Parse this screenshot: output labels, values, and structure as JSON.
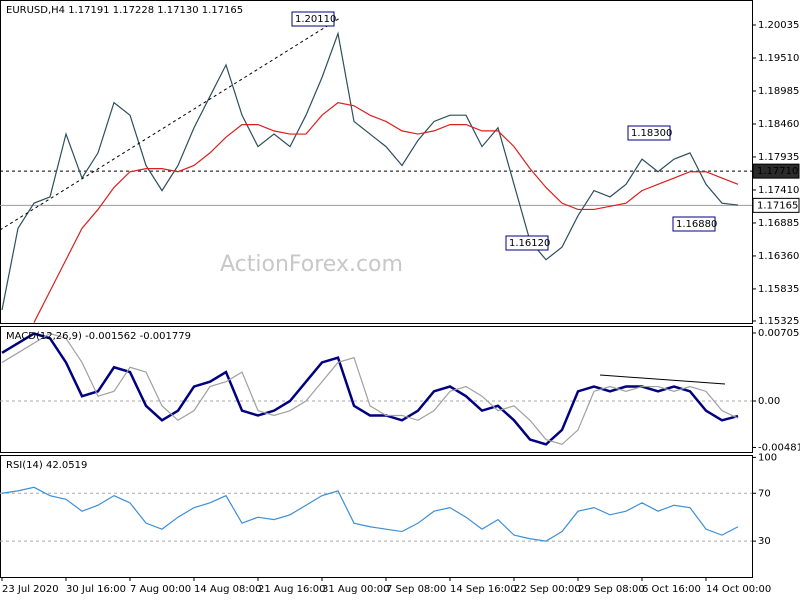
{
  "chart_data": [
    {
      "type": "line",
      "title": "EURUSD,H4  1.17191 1.17228 1.17130 1.17165",
      "watermark": "ActionForex.com",
      "categories": [
        "23 Jul 2020",
        null,
        null,
        null,
        "30 Jul 16:00",
        null,
        null,
        null,
        "7 Aug 00:00",
        null,
        null,
        null,
        "14 Aug 08:00",
        null,
        null,
        null,
        "21 Aug 16:00",
        null,
        null,
        null,
        "31 Aug 00:00",
        null,
        null,
        null,
        "7 Sep 08:00",
        null,
        null,
        null,
        "14 Sep 16:00",
        null,
        null,
        null,
        "22 Sep 00:00",
        null,
        null,
        null,
        "29 Sep 08:00",
        null,
        null,
        null,
        "6 Oct 16:00",
        null,
        null,
        null,
        "14 Oct 00:00",
        null,
        null
      ],
      "series": [
        {
          "color": "#2b4f5c",
          "values": [
            1.155,
            1.168,
            1.172,
            1.173,
            1.183,
            1.176,
            1.18,
            1.188,
            1.186,
            1.178,
            1.174,
            1.178,
            1.184,
            1.189,
            1.194,
            1.186,
            1.181,
            1.183,
            1.181,
            1.186,
            1.192,
            1.199,
            1.185,
            1.183,
            1.181,
            1.178,
            1.182,
            1.185,
            1.186,
            1.186,
            1.181,
            1.184,
            1.175,
            1.166,
            1.163,
            1.165,
            1.17,
            1.174,
            1.173,
            1.175,
            1.179,
            1.177,
            1.179,
            1.18,
            1.175,
            1.172,
            1.1717
          ]
        },
        {
          "color": "#d9201f",
          "values": [
            null,
            null,
            1.153,
            1.158,
            1.163,
            1.168,
            1.171,
            1.1745,
            1.177,
            1.1775,
            1.1775,
            1.177,
            1.178,
            1.18,
            1.1825,
            1.1845,
            1.1845,
            1.1835,
            1.183,
            1.183,
            1.186,
            1.188,
            1.1875,
            1.186,
            1.185,
            1.1835,
            1.183,
            1.1835,
            1.1845,
            1.1845,
            1.1835,
            1.1835,
            1.181,
            1.1775,
            1.1745,
            1.172,
            1.171,
            1.171,
            1.1715,
            1.172,
            1.174,
            1.175,
            1.176,
            1.177,
            1.177,
            1.176,
            1.175
          ]
        }
      ],
      "annotations": [
        "1.20110",
        "1.18300",
        "1.16880",
        "1.16120"
      ],
      "levels": [
        {
          "value": 1.1771,
          "label": "1.17710",
          "style": "dashed"
        },
        {
          "value": 1.17165,
          "label": "1.17165",
          "style": "current"
        }
      ],
      "ylim": [
        1.15293,
        1.20433
      ],
      "yticks": [
        1.20035,
        {
          "value": 1.1951,
          "label": "1.19510"
        },
        1.18985,
        {
          "value": 1.1846,
          "label": "1.18460"
        },
        1.17935,
        {
          "value": 1.1741,
          "label": "1.17410"
        },
        1.16885,
        {
          "value": 1.1636,
          "label": "1.16360"
        },
        1.15835,
        1.15325
      ]
    },
    {
      "type": "line",
      "title": "MACD(12,26,9) -0.001562 -0.001779",
      "series": [
        {
          "color": "#000080",
          "values": [
            0.005,
            0.006,
            0.007,
            0.0065,
            0.004,
            0.0005,
            0.001,
            0.0035,
            0.003,
            -0.0005,
            -0.002,
            -0.001,
            0.0015,
            0.002,
            0.003,
            -0.001,
            -0.0015,
            -0.001,
            0.0,
            0.002,
            0.004,
            0.0045,
            -0.0005,
            -0.0015,
            -0.0015,
            -0.002,
            -0.001,
            0.001,
            0.0015,
            0.0005,
            -0.001,
            -0.0005,
            -0.002,
            -0.004,
            -0.0045,
            -0.003,
            0.001,
            0.0015,
            0.001,
            0.0015,
            0.0015,
            0.001,
            0.0015,
            0.001,
            -0.001,
            -0.002,
            -0.001562
          ]
        },
        {
          "color": "#a0a0a0",
          "values": [
            0.004,
            0.005,
            0.006,
            0.007,
            0.0065,
            0.004,
            0.0005,
            0.001,
            0.0035,
            0.003,
            -0.0005,
            -0.002,
            -0.001,
            0.0015,
            0.002,
            0.003,
            -0.001,
            -0.0015,
            -0.001,
            0.0,
            0.002,
            0.004,
            0.0045,
            -0.0005,
            -0.0015,
            -0.0015,
            -0.002,
            -0.001,
            0.001,
            0.0015,
            0.0005,
            -0.001,
            -0.0005,
            -0.002,
            -0.004,
            -0.0045,
            -0.003,
            0.001,
            0.0015,
            0.001,
            0.0015,
            0.0015,
            0.001,
            0.0015,
            0.001,
            -0.001,
            -0.001779
          ]
        }
      ],
      "ylim": [
        -0.00529,
        0.00778
      ],
      "yticks": [
        0.007057,
        {
          "value": 0,
          "label": "0.00"
        },
        -0.004818
      ]
    },
    {
      "type": "line",
      "title": "RSI(14) 42.0519",
      "series": [
        {
          "color": "#3d8fd6",
          "values": [
            70,
            72,
            75,
            68,
            65,
            55,
            60,
            68,
            62,
            45,
            40,
            50,
            58,
            62,
            68,
            45,
            50,
            48,
            52,
            60,
            68,
            72,
            45,
            42,
            40,
            38,
            45,
            55,
            58,
            50,
            40,
            48,
            35,
            32,
            30,
            38,
            55,
            58,
            52,
            55,
            62,
            55,
            60,
            58,
            40,
            35,
            42
          ]
        }
      ],
      "ylim": [
        0,
        102
      ],
      "yticks": [
        100,
        70,
        30
      ]
    }
  ]
}
